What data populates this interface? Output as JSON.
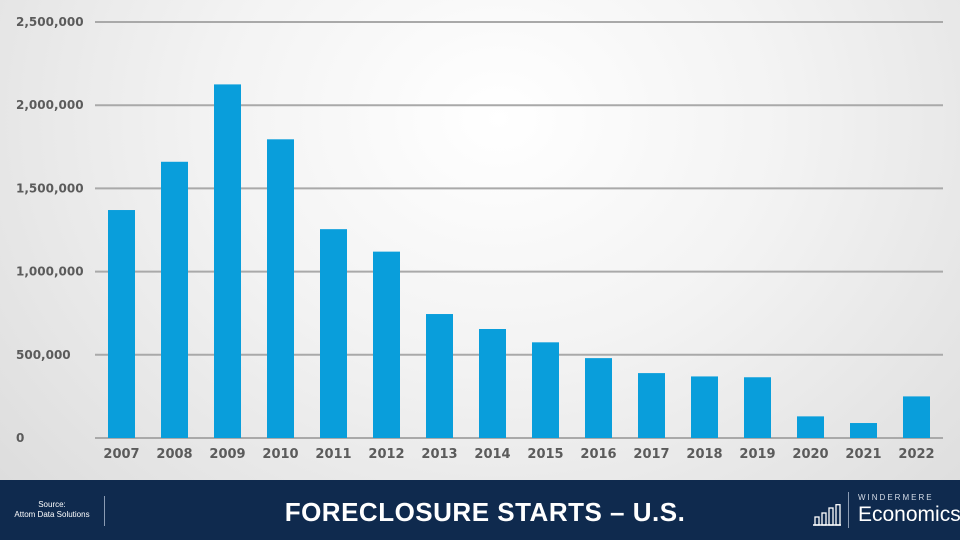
{
  "chart_data": {
    "type": "bar",
    "categories": [
      "2007",
      "2008",
      "2009",
      "2010",
      "2011",
      "2012",
      "2013",
      "2014",
      "2015",
      "2016",
      "2017",
      "2018",
      "2019",
      "2020",
      "2021",
      "2022"
    ],
    "values": [
      1370000,
      1660000,
      2125000,
      1795000,
      1255000,
      1120000,
      745000,
      655000,
      575000,
      480000,
      390000,
      370000,
      365000,
      130000,
      90000,
      250000
    ],
    "yticks": [
      "0",
      "500,000",
      "1,000,000",
      "1,500,000",
      "2,000,000",
      "2,500,000"
    ],
    "ylim": [
      0,
      2500000
    ],
    "grid": true,
    "bar_color": "#099edb"
  },
  "footer": {
    "source_line1": "Source:",
    "source_line2": "Attom Data Solutions",
    "title": "FORECLOSURE STARTS – U.S.",
    "logo_top": "WINDERMERE",
    "logo_main": "Economics",
    "logo_icon": "bar-chart-logo-icon",
    "background_color": "#0f2a4e"
  }
}
